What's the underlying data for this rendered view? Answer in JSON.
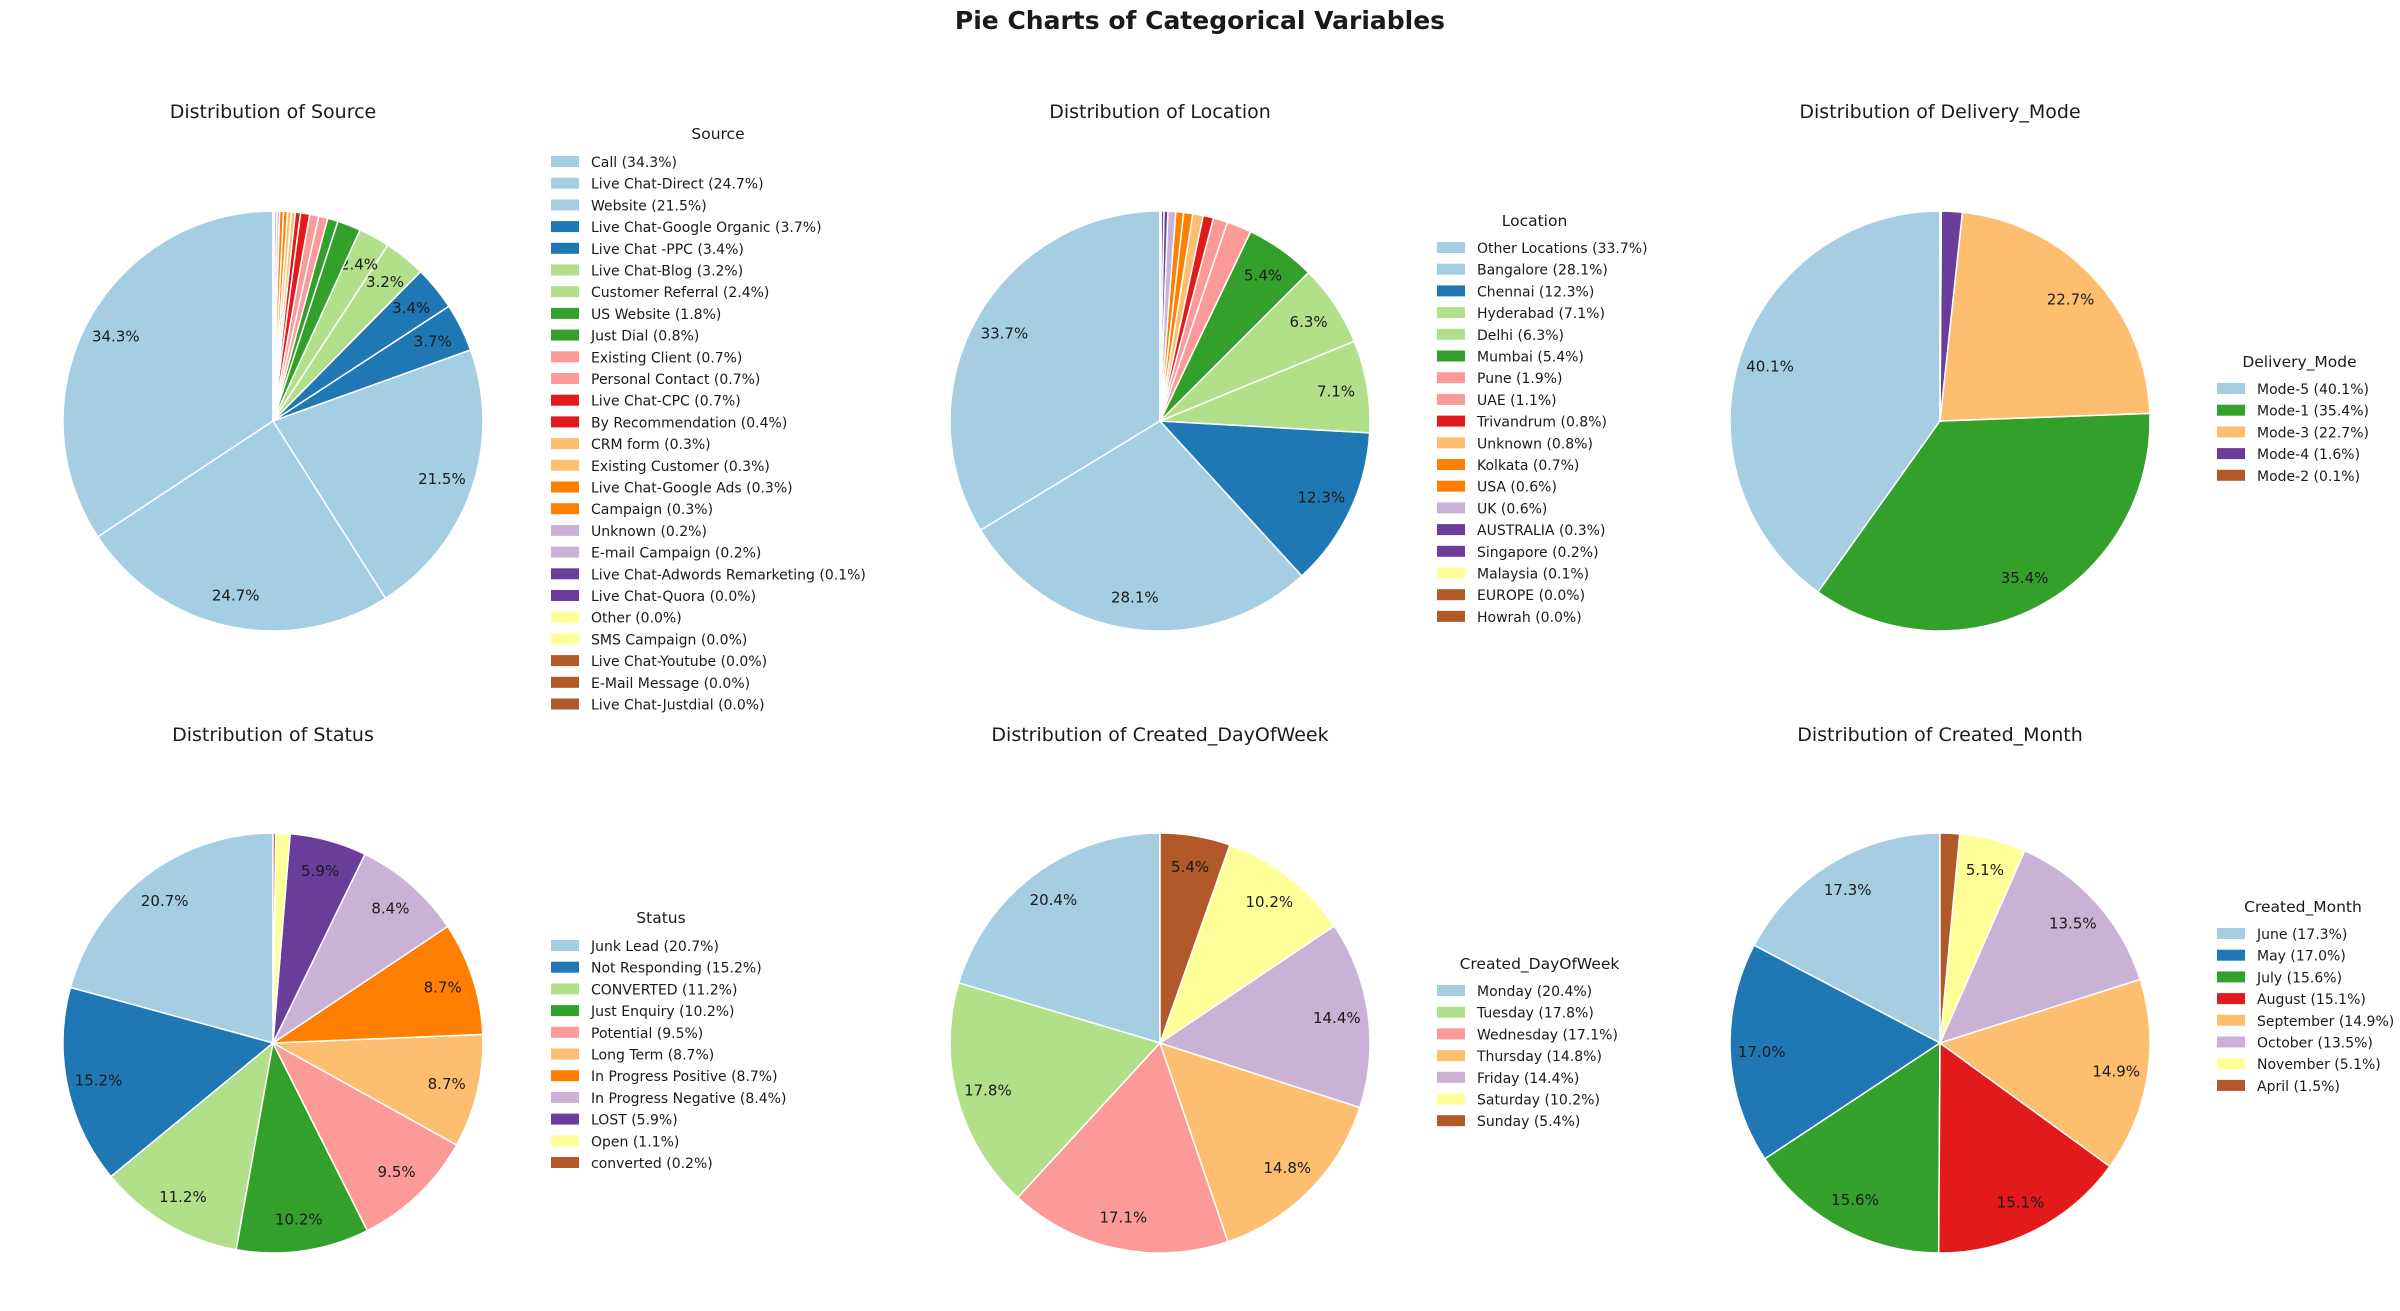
{
  "suptitle": "Pie Charts of Categorical Variables",
  "chart_data": [
    {
      "type": "pie",
      "title": "Distribution of Source",
      "legend_title": "Source",
      "legend_placement": "right",
      "start_angle": 90,
      "categories": [
        "Call",
        "Live Chat-Direct",
        "Website",
        "Live Chat-Google Organic",
        "Live Chat -PPC",
        "Live Chat-Blog",
        "Customer Referral",
        "US Website",
        "Just Dial",
        "Existing Client",
        "Personal Contact",
        "Live Chat-CPC",
        "By Recommendation",
        "CRM form",
        "Existing Customer",
        "Live Chat-Google Ads",
        "Campaign",
        "Unknown",
        "E-mail Campaign",
        "Live Chat-Adwords Remarketing",
        "Live Chat-Quora",
        "Other",
        "SMS Campaign",
        "Live Chat-Youtube",
        "E-Mail Message",
        "Live Chat-Justdial"
      ],
      "values": [
        34.3,
        24.7,
        21.5,
        3.7,
        3.4,
        3.2,
        2.4,
        1.8,
        0.8,
        0.7,
        0.7,
        0.7,
        0.4,
        0.3,
        0.3,
        0.3,
        0.3,
        0.2,
        0.2,
        0.1,
        0.0,
        0.0,
        0.0,
        0.0,
        0.0,
        0.0
      ],
      "legend_labels": [
        "Call (34.3%)",
        "Live Chat-Direct (24.7%)",
        "Website (21.5%)",
        "Live Chat-Google Organic (3.7%)",
        "Live Chat -PPC (3.4%)",
        "Live Chat-Blog (3.2%)",
        "Customer Referral (2.4%)",
        "US Website (1.8%)",
        "Just Dial (0.8%)",
        "Existing Client (0.7%)",
        "Personal Contact (0.7%)",
        "Live Chat-CPC (0.7%)",
        "By Recommendation (0.4%)",
        "CRM form (0.3%)",
        "Existing Customer (0.3%)",
        "Live Chat-Google Ads (0.3%)",
        "Campaign (0.3%)",
        "Unknown (0.2%)",
        "E-mail Campaign (0.2%)",
        "Live Chat-Adwords Remarketing (0.1%)",
        "Live Chat-Quora (0.0%)",
        "Other (0.0%)",
        "SMS Campaign (0.0%)",
        "Live Chat-Youtube (0.0%)",
        "E-Mail Message (0.0%)",
        "Live Chat-Justdial (0.0%)"
      ],
      "pct_labels": [
        "34.3%",
        "24.7%",
        "21.5%",
        "3.7%",
        "3.4%",
        "3.2%",
        "2.4%"
      ],
      "colors": [
        "#a6cee3",
        "#a6cee3",
        "#a6cee3",
        "#1f78b4",
        "#1f78b4",
        "#b2df8a",
        "#b2df8a",
        "#33a02c",
        "#33a02c",
        "#fb9a99",
        "#fb9a99",
        "#e31a1c",
        "#e31a1c",
        "#fdbf6f",
        "#fdbf6f",
        "#ff7f00",
        "#ff7f00",
        "#cab2d6",
        "#cab2d6",
        "#6a3d9a",
        "#6a3d9a",
        "#ffff99",
        "#ffff99",
        "#b15928",
        "#b15928",
        "#b15928"
      ]
    },
    {
      "type": "pie",
      "title": "Distribution of Location",
      "legend_title": "Location",
      "legend_placement": "right",
      "start_angle": 90,
      "categories": [
        "Other Locations",
        "Bangalore",
        "Chennai",
        "Hyderabad",
        "Delhi",
        "Mumbai",
        "Pune",
        "UAE",
        "Trivandrum",
        "Unknown",
        "Kolkata",
        "USA",
        "UK",
        "AUSTRALIA",
        "Singapore",
        "Malaysia",
        "EUROPE",
        "Howrah"
      ],
      "values": [
        33.7,
        28.1,
        12.3,
        7.1,
        6.3,
        5.4,
        1.9,
        1.1,
        0.8,
        0.8,
        0.7,
        0.6,
        0.6,
        0.3,
        0.2,
        0.1,
        0.0,
        0.0
      ],
      "legend_labels": [
        "Other Locations (33.7%)",
        "Bangalore (28.1%)",
        "Chennai (12.3%)",
        "Hyderabad (7.1%)",
        "Delhi (6.3%)",
        "Mumbai (5.4%)",
        "Pune (1.9%)",
        "UAE (1.1%)",
        "Trivandrum (0.8%)",
        "Unknown (0.8%)",
        "Kolkata (0.7%)",
        "USA (0.6%)",
        "UK (0.6%)",
        "AUSTRALIA (0.3%)",
        "Singapore (0.2%)",
        "Malaysia (0.1%)",
        "EUROPE (0.0%)",
        "Howrah (0.0%)"
      ],
      "pct_labels": [
        "33.7%",
        "28.1%",
        "12.3%",
        "7.1%",
        "6.3%",
        "5.4%"
      ],
      "colors": [
        "#a6cee3",
        "#a6cee3",
        "#1f78b4",
        "#b2df8a",
        "#b2df8a",
        "#33a02c",
        "#fb9a99",
        "#fb9a99",
        "#e31a1c",
        "#fdbf6f",
        "#ff7f00",
        "#ff7f00",
        "#cab2d6",
        "#6a3d9a",
        "#6a3d9a",
        "#ffff99",
        "#b15928",
        "#b15928"
      ]
    },
    {
      "type": "pie",
      "title": "Distribution of Delivery_Mode",
      "legend_title": "Delivery_Mode",
      "legend_placement": "right",
      "start_angle": 90,
      "categories": [
        "Mode-5",
        "Mode-1",
        "Mode-3",
        "Mode-4",
        "Mode-2"
      ],
      "values": [
        40.1,
        35.4,
        22.7,
        1.6,
        0.1
      ],
      "legend_labels": [
        "Mode-5 (40.1%)",
        "Mode-1 (35.4%)",
        "Mode-3 (22.7%)",
        "Mode-4 (1.6%)",
        "Mode-2 (0.1%)"
      ],
      "pct_labels": [
        "40.1%",
        "35.4%",
        "22.7%"
      ],
      "colors": [
        "#a6cee3",
        "#33a02c",
        "#fdbf6f",
        "#6a3d9a",
        "#b15928"
      ]
    },
    {
      "type": "pie",
      "title": "Distribution of Status",
      "legend_title": "Status",
      "legend_placement": "right",
      "start_angle": 90,
      "categories": [
        "Junk Lead",
        "Not Responding",
        "CONVERTED",
        "Just Enquiry",
        "Potential",
        "Long Term",
        "In Progress Positive",
        "In Progress Negative",
        "LOST",
        "Open",
        "converted"
      ],
      "values": [
        20.7,
        15.2,
        11.2,
        10.2,
        9.5,
        8.7,
        8.7,
        8.4,
        5.9,
        1.1,
        0.2
      ],
      "legend_labels": [
        "Junk Lead (20.7%)",
        "Not Responding (15.2%)",
        "CONVERTED (11.2%)",
        "Just Enquiry (10.2%)",
        "Potential (9.5%)",
        "Long Term (8.7%)",
        "In Progress Positive (8.7%)",
        "In Progress Negative (8.4%)",
        "LOST (5.9%)",
        "Open (1.1%)",
        "converted (0.2%)"
      ],
      "pct_labels": [
        "20.7%",
        "15.2%",
        "11.2%",
        "10.2%",
        "9.5%",
        "8.7%",
        "8.7%",
        "8.4%",
        "5.9%"
      ],
      "colors": [
        "#a6cee3",
        "#1f78b4",
        "#b2df8a",
        "#33a02c",
        "#fb9a99",
        "#fdbf6f",
        "#ff7f00",
        "#cab2d6",
        "#6a3d9a",
        "#ffff99",
        "#b15928"
      ]
    },
    {
      "type": "pie",
      "title": "Distribution of Created_DayOfWeek",
      "legend_title": "Created_DayOfWeek",
      "legend_placement": "right",
      "start_angle": 90,
      "categories": [
        "Monday",
        "Tuesday",
        "Wednesday",
        "Thursday",
        "Friday",
        "Saturday",
        "Sunday"
      ],
      "values": [
        20.4,
        17.8,
        17.1,
        14.8,
        14.4,
        10.2,
        5.4
      ],
      "legend_labels": [
        "Monday (20.4%)",
        "Tuesday (17.8%)",
        "Wednesday (17.1%)",
        "Thursday (14.8%)",
        "Friday (14.4%)",
        "Saturday (10.2%)",
        "Sunday (5.4%)"
      ],
      "pct_labels": [
        "20.4%",
        "17.8%",
        "17.1%",
        "14.8%",
        "14.4%",
        "10.2%",
        "5.4%"
      ],
      "colors": [
        "#a6cee3",
        "#b2df8a",
        "#fb9a99",
        "#fdbf6f",
        "#cab2d6",
        "#ffff99",
        "#b15928"
      ]
    },
    {
      "type": "pie",
      "title": "Distribution of Created_Month",
      "legend_title": "Created_Month",
      "legend_placement": "right",
      "start_angle": 90,
      "categories": [
        "June",
        "May",
        "July",
        "August",
        "September",
        "October",
        "November",
        "April"
      ],
      "values": [
        17.3,
        17.0,
        15.6,
        15.1,
        14.9,
        13.5,
        5.1,
        1.5
      ],
      "legend_labels": [
        "June (17.3%)",
        "May (17.0%)",
        "July (15.6%)",
        "August (15.1%)",
        "September (14.9%)",
        "October (13.5%)",
        "November (5.1%)",
        "April (1.5%)"
      ],
      "pct_labels": [
        "17.3%",
        "17.0%",
        "15.6%",
        "15.1%",
        "14.9%",
        "13.5%",
        "5.1%"
      ],
      "colors": [
        "#a6cee3",
        "#1f78b4",
        "#33a02c",
        "#e31a1c",
        "#fdbf6f",
        "#cab2d6",
        "#ffff99",
        "#b15928"
      ]
    }
  ]
}
